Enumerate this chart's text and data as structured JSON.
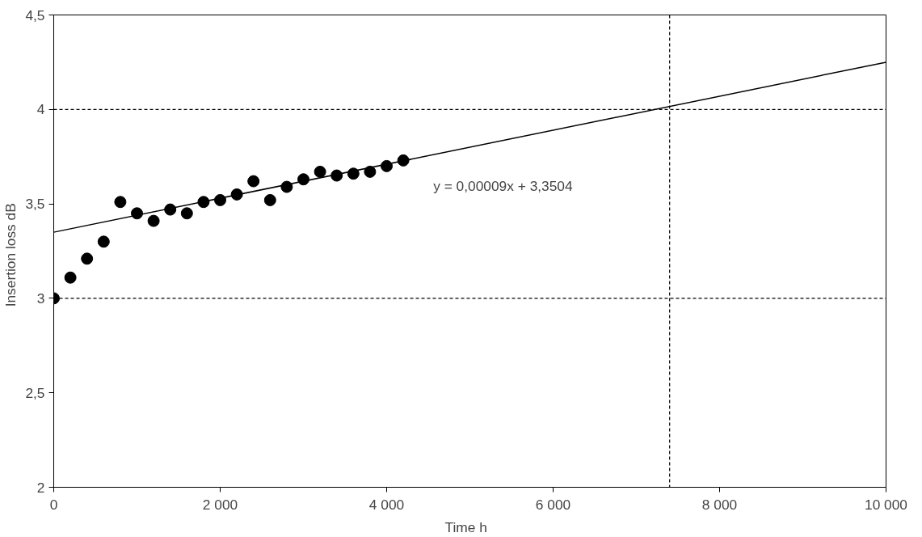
{
  "chart_data": {
    "type": "scatter",
    "xlabel": "Time   h",
    "ylabel": "Insertion loss   dB",
    "xlim": [
      0,
      10000
    ],
    "ylim": [
      2,
      4.5
    ],
    "xticks": [
      0,
      {
        "value": 2000,
        "label": "2 000"
      },
      {
        "value": 4000,
        "label": "4 000"
      },
      {
        "value": 6000,
        "label": "6 000"
      },
      {
        "value": 8000,
        "label": "8 000"
      },
      {
        "value": 10000,
        "label": "10 000"
      }
    ],
    "yticks": [
      2,
      {
        "value": 2.5,
        "label": "2,5"
      },
      3,
      {
        "value": 3.5,
        "label": "3,5"
      },
      4,
      {
        "value": 4.5,
        "label": "4,5"
      }
    ],
    "grid": false,
    "series": [
      {
        "marker": "circle",
        "color": "#000000",
        "x": [
          0,
          200,
          400,
          600,
          800,
          1000,
          1200,
          1400,
          1600,
          1800,
          2000,
          2200,
          2400,
          2600,
          2800,
          3000,
          3200,
          3400,
          3600,
          3800,
          4000,
          4200
        ],
        "values": [
          3.0,
          3.11,
          3.21,
          3.3,
          3.51,
          3.45,
          3.41,
          3.47,
          3.45,
          3.51,
          3.52,
          3.55,
          3.62,
          3.52,
          3.59,
          3.63,
          3.67,
          3.65,
          3.66,
          3.67,
          3.7,
          3.73
        ]
      },
      {
        "type": "line",
        "color": "#000000",
        "line_style": "solid",
        "x": [
          0,
          10000
        ],
        "values": [
          3.35,
          4.25
        ]
      }
    ],
    "ref_lines": [
      {
        "axis": "y",
        "value": 4,
        "line_style": "dashed",
        "color": "#000000"
      },
      {
        "axis": "y",
        "value": 3,
        "line_style": "dashed",
        "color": "#000000"
      },
      {
        "axis": "x",
        "value": 7400,
        "line_style": "dashed",
        "color": "#000000"
      }
    ],
    "annotations": [
      "y = 0,00009x + 3,3504"
    ]
  }
}
